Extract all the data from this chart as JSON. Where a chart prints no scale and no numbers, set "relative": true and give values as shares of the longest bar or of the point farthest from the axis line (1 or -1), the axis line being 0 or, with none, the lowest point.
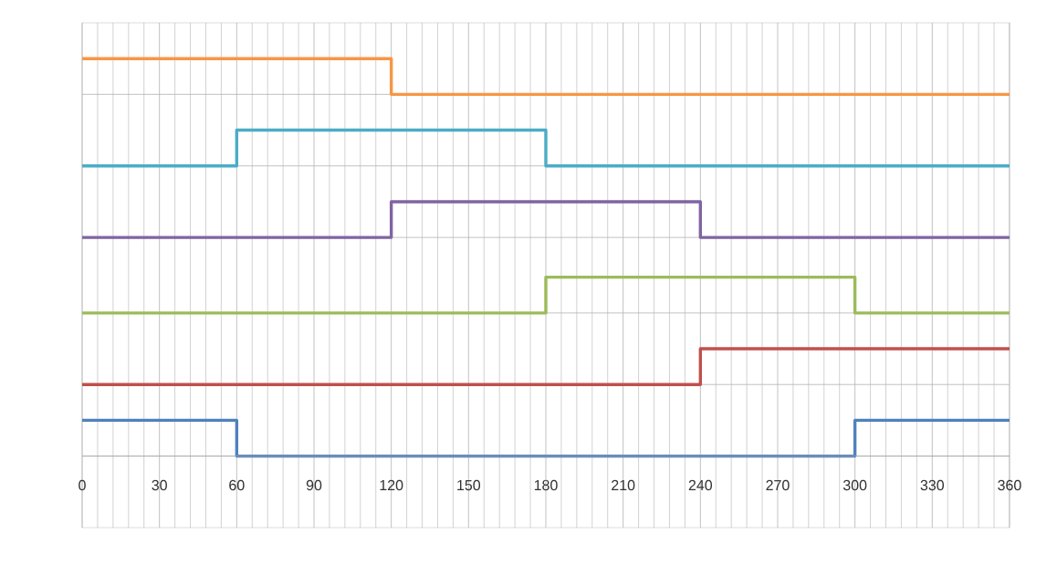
{
  "chart_data": {
    "type": "step",
    "relative": true,
    "grid": true,
    "x": [
      0,
      60,
      120,
      180,
      240,
      300,
      360
    ],
    "xlim": [
      0,
      360
    ],
    "xticks": [
      0,
      30,
      60,
      90,
      120,
      150,
      180,
      210,
      240,
      270,
      300,
      330,
      360
    ],
    "series": [
      {
        "color": "#4f81bd",
        "values": [
          0.09,
          0,
          0,
          0,
          0,
          0.09,
          0.09
        ]
      },
      {
        "color": "#c0504d",
        "values": [
          0.18,
          0.18,
          0.18,
          0.18,
          0.27,
          0.27,
          0.27
        ]
      },
      {
        "color": "#9bbb59",
        "values": [
          0.36,
          0.36,
          0.36,
          0.45,
          0.45,
          0.36,
          0.36
        ]
      },
      {
        "color": "#8064a2",
        "values": [
          0.55,
          0.55,
          0.64,
          0.64,
          0.55,
          0.55,
          0.55
        ]
      },
      {
        "color": "#4bacc6",
        "values": [
          0.73,
          0.82,
          0.82,
          0.73,
          0.73,
          0.73,
          0.73
        ]
      },
      {
        "color": "#f79646",
        "values": [
          1,
          1,
          0.91,
          0.91,
          0.91,
          0.91,
          0.91
        ]
      }
    ]
  }
}
